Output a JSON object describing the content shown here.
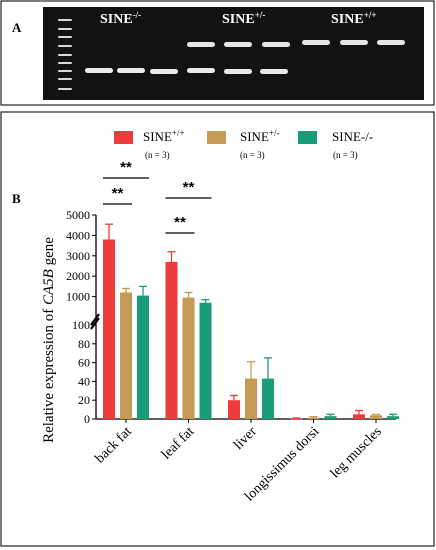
{
  "panel_a": {
    "letter": "A",
    "group_labels": [
      {
        "base": "SINE",
        "sup": "-/-"
      },
      {
        "base": "SINE",
        "sup": "+/-"
      },
      {
        "base": "SINE",
        "sup": "+/+"
      }
    ]
  },
  "panel_b": {
    "letter": "B"
  },
  "chart_data": {
    "type": "bar",
    "ylabel": {
      "pre": "Relative expression of ",
      "gene": "CA5B",
      "post": " gene"
    },
    "categories": [
      "back fat",
      "leaf fat",
      "liver",
      "longissimus dorsi",
      "leg muscles"
    ],
    "series": [
      {
        "name": "SINE",
        "sup": "+/+",
        "n": "(n = 3)",
        "color": "#ee3b3e",
        "values": [
          3800,
          2700,
          20,
          0.5,
          5
        ],
        "errors": [
          750,
          500,
          5,
          0.5,
          4
        ]
      },
      {
        "name": "SINE",
        "sup": "+/-",
        "n": "(n = 3)",
        "color": "#c49a55",
        "values": [
          1200,
          950,
          43,
          1.5,
          4
        ],
        "errors": [
          200,
          250,
          18,
          1,
          1
        ]
      },
      {
        "name": "SINE-/-",
        "sup": "",
        "n": "(n = 3)",
        "color": "#1a9c78",
        "values": [
          1050,
          700,
          43,
          3,
          3
        ],
        "errors": [
          450,
          150,
          22,
          2,
          2
        ]
      }
    ],
    "y_axis_break": {
      "lower_range": [
        0,
        100
      ],
      "upper_range": [
        0,
        5000
      ]
    },
    "yticks_lower": [
      "0",
      "20",
      "40",
      "60",
      "80",
      "100"
    ],
    "yticks_upper": [
      "1000",
      "2000",
      "3000",
      "4000",
      "5000"
    ],
    "significance": [
      {
        "category": "back fat",
        "pair": [
          "SINE+/+",
          "SINE-/-"
        ],
        "label": "**"
      },
      {
        "category": "back fat",
        "pair": [
          "SINE+/+",
          "SINE+/-"
        ],
        "label": "**"
      },
      {
        "category": "leaf fat",
        "pair": [
          "SINE+/+",
          "SINE-/-"
        ],
        "label": "**"
      },
      {
        "category": "leaf fat",
        "pair": [
          "SINE+/+",
          "SINE+/-"
        ],
        "label": "**"
      }
    ]
  }
}
